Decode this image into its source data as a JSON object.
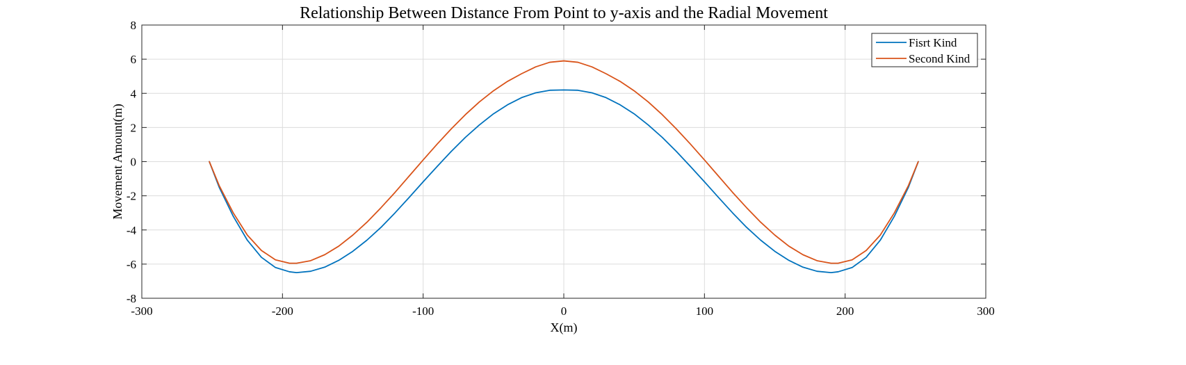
{
  "chart_data": {
    "type": "line",
    "title": "Relationship Between Distance From Point to y-axis and the Radial Movement",
    "xlabel": "X(m)",
    "ylabel": "Movement Amount(m)",
    "xlim": [
      -300,
      300
    ],
    "ylim": [
      -8,
      8
    ],
    "xticks": [
      -300,
      -200,
      -100,
      0,
      100,
      200,
      300
    ],
    "yticks": [
      -8,
      -6,
      -4,
      -2,
      0,
      2,
      4,
      6,
      8
    ],
    "xtick_labels": [
      "-300",
      "-200",
      "-100",
      "0",
      "100",
      "200",
      "300"
    ],
    "ytick_labels": [
      "-8",
      "-6",
      "-4",
      "-2",
      "0",
      "2",
      "4",
      "6",
      "8"
    ],
    "grid": true,
    "legend_position": "top-right",
    "series": [
      {
        "name": "Fisrt Kind",
        "color": "#0072BD",
        "x": [
          -252,
          -245,
          -235,
          -225,
          -215,
          -205,
          -195,
          -190,
          -180,
          -170,
          -160,
          -150,
          -140,
          -130,
          -120,
          -110,
          -100,
          -90,
          -80,
          -70,
          -60,
          -50,
          -40,
          -30,
          -20,
          -10,
          0,
          10,
          20,
          30,
          40,
          50,
          60,
          70,
          80,
          90,
          100,
          110,
          120,
          130,
          140,
          150,
          160,
          170,
          180,
          190,
          195,
          205,
          215,
          225,
          235,
          245,
          252
        ],
        "y": [
          0.0,
          -1.5,
          -3.2,
          -4.6,
          -5.6,
          -6.2,
          -6.45,
          -6.5,
          -6.42,
          -6.18,
          -5.78,
          -5.25,
          -4.6,
          -3.85,
          -3.0,
          -2.1,
          -1.18,
          -0.28,
          0.6,
          1.42,
          2.15,
          2.8,
          3.33,
          3.75,
          4.03,
          4.18,
          4.2,
          4.18,
          4.03,
          3.75,
          3.33,
          2.8,
          2.15,
          1.42,
          0.6,
          -0.28,
          -1.18,
          -2.1,
          -3.0,
          -3.85,
          -4.6,
          -5.25,
          -5.78,
          -6.18,
          -6.42,
          -6.5,
          -6.45,
          -6.2,
          -5.6,
          -4.6,
          -3.2,
          -1.5,
          0.0
        ]
      },
      {
        "name": "Second Kind",
        "color": "#D95319",
        "x": [
          -252,
          -245,
          -235,
          -225,
          -215,
          -205,
          -195,
          -190,
          -180,
          -170,
          -160,
          -150,
          -140,
          -130,
          -120,
          -110,
          -100,
          -90,
          -80,
          -70,
          -60,
          -50,
          -40,
          -30,
          -20,
          -10,
          0,
          10,
          20,
          30,
          40,
          50,
          60,
          70,
          80,
          90,
          100,
          110,
          120,
          130,
          140,
          150,
          160,
          170,
          180,
          190,
          195,
          205,
          215,
          225,
          235,
          245,
          252
        ],
        "y": [
          0.0,
          -1.4,
          -3.0,
          -4.3,
          -5.2,
          -5.75,
          -5.95,
          -5.95,
          -5.8,
          -5.45,
          -4.95,
          -4.3,
          -3.55,
          -2.7,
          -1.8,
          -0.85,
          0.1,
          1.03,
          1.92,
          2.75,
          3.5,
          4.15,
          4.7,
          5.15,
          5.55,
          5.82,
          5.9,
          5.82,
          5.55,
          5.15,
          4.7,
          4.15,
          3.5,
          2.75,
          1.92,
          1.03,
          0.1,
          -0.85,
          -1.8,
          -2.7,
          -3.55,
          -4.3,
          -4.95,
          -5.45,
          -5.8,
          -5.95,
          -5.95,
          -5.75,
          -5.2,
          -4.3,
          -3.0,
          -1.4,
          0.0
        ]
      }
    ]
  }
}
